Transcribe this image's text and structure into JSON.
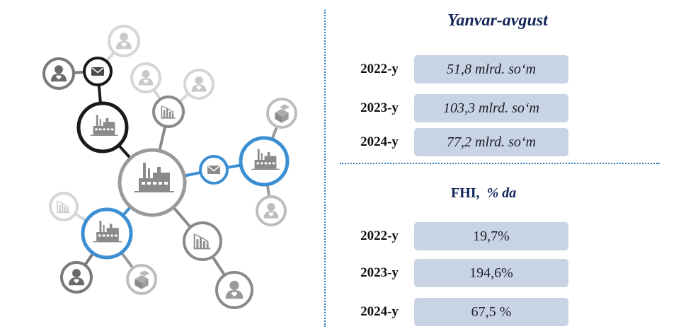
{
  "section1": {
    "title": "Yanvar-avgust",
    "rows": [
      {
        "year": "2022-y",
        "value": "51,8 mlrd. so‘m"
      },
      {
        "year": "2023-y",
        "value": "103,3 mlrd. so‘m"
      },
      {
        "year": "2024-y",
        "value": "77,2 mlrd. so‘m"
      }
    ]
  },
  "section2": {
    "title": "FHI,",
    "unit": "% da",
    "rows": [
      {
        "year": "2022-y",
        "value": "19,7%"
      },
      {
        "year": "2023-y",
        "value": "194,6%"
      },
      {
        "year": "2024-y",
        "value": "67,5 %"
      }
    ]
  },
  "colors": {
    "accent_blue": "#3d8fd4",
    "dark_ring": "#1a1a1a",
    "grey_ring": "#9a9a9a",
    "light_ring": "#d6d6d6",
    "box_fill": "#c8d3e3",
    "title_navy": "#12265a"
  },
  "icons": [
    "factory-icon",
    "envelope-icon",
    "person-icon",
    "chart-icon",
    "boxes-icon"
  ]
}
